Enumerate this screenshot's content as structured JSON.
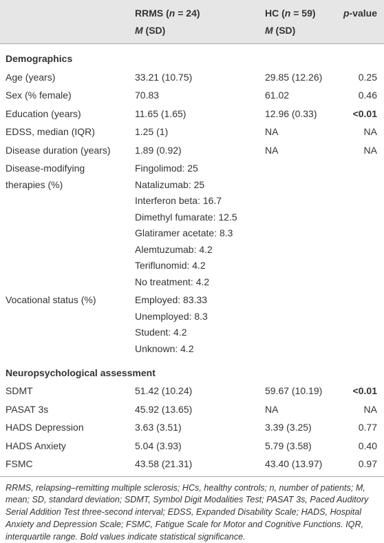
{
  "header": {
    "col1": [
      "RRMS (",
      "n",
      " = 24)"
    ],
    "col1_sub": [
      "M",
      " (SD)"
    ],
    "col2": [
      "HC (",
      "n",
      " = 59)"
    ],
    "col2_sub": [
      "M",
      " (SD)"
    ],
    "col3": [
      "p",
      "-value"
    ]
  },
  "sections": [
    {
      "title": "Demographics",
      "rows": [
        {
          "cells": [
            "Age (years)",
            "33.21 (10.75)",
            "29.85 (12.26)",
            "0.25"
          ]
        },
        {
          "cells": [
            "Sex (% female)",
            "70.83",
            "61.02",
            "0.46"
          ]
        },
        {
          "cells": [
            "Education (years)",
            "11.65 (1.65)",
            "12.96 (0.33)",
            "<0.01"
          ],
          "bold_p": true
        },
        {
          "cells": [
            "EDSS, median (IQR)",
            "1.25 (1)",
            "NA",
            "NA"
          ]
        },
        {
          "cells": [
            "Disease duration (years)",
            "1.89 (0.92)",
            "NA",
            "NA"
          ]
        },
        {
          "cells": [
            "Disease-modifying therapies (%)",
            [
              "Fingolimod: 25",
              "Natalizumab: 25",
              "Interferon beta: 16.7",
              "Dimethyl fumarate: 12.5",
              "Glatiramer acetate: 8.3",
              "Alemtuzumab: 4.2",
              "Teriflunomid: 4.2",
              "No treatment: 4.2"
            ]
          ]
        },
        {
          "cells": [
            "Vocational status (%)",
            [
              "Employed: 83.33",
              "Unemployed: 8.3",
              "Student: 4.2",
              "Unknown: 4.2"
            ]
          ]
        }
      ]
    },
    {
      "title": "Neuropsychological assessment",
      "rows": [
        {
          "cells": [
            "SDMT",
            "51.42 (10.24)",
            "59.67 (10.19)",
            "<0.01"
          ],
          "bold_p": true
        },
        {
          "cells": [
            "PASAT 3s",
            "45.92 (13.65)",
            "NA",
            "NA"
          ]
        },
        {
          "cells": [
            "HADS Depression",
            "3.63 (3.51)",
            "3.39 (3.25)",
            "0.77"
          ]
        },
        {
          "cells": [
            "HADS Anxiety",
            "5.04 (3.93)",
            "5.79 (3.58)",
            "0.40"
          ]
        },
        {
          "cells": [
            "FSMC",
            "43.58 (21.31)",
            "43.40 (13.97)",
            "0.97"
          ]
        }
      ]
    }
  ],
  "footnote": "RRMS, relapsing–remitting multiple sclerosis; HCs, healthy controls; n, number of patients; M, mean; SD, standard deviation; SDMT, Symbol Digit Modalities Test; PASAT 3s, Paced Auditory Serial Addition Test three-second interval; EDSS, Expanded Disability Scale; HADS, Hospital Anxiety and Depression Scale; FSMC, Fatigue Scale for Motor and Cognitive Functions. IQR, interquartile range. Bold values indicate statistical significance."
}
